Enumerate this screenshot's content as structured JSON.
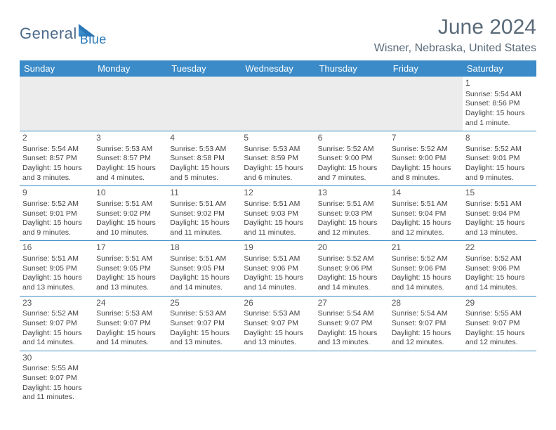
{
  "logo": {
    "part1": "General",
    "part2": "Blue"
  },
  "title": "June 2024",
  "location": "Wisner, Nebraska, United States",
  "colors": {
    "header_bg": "#3a8bc8",
    "header_text": "#ffffff",
    "border": "#3a8bc8",
    "empty_bg": "#ececec",
    "logo_gray": "#4a6a8a",
    "logo_blue": "#2a78b8",
    "title_color": "#5a6a78"
  },
  "day_headers": [
    "Sunday",
    "Monday",
    "Tuesday",
    "Wednesday",
    "Thursday",
    "Friday",
    "Saturday"
  ],
  "weeks": [
    [
      null,
      null,
      null,
      null,
      null,
      null,
      {
        "n": "1",
        "sr": "5:54 AM",
        "ss": "8:56 PM",
        "dl": "15 hours and 1 minute."
      }
    ],
    [
      {
        "n": "2",
        "sr": "5:54 AM",
        "ss": "8:57 PM",
        "dl": "15 hours and 3 minutes."
      },
      {
        "n": "3",
        "sr": "5:53 AM",
        "ss": "8:57 PM",
        "dl": "15 hours and 4 minutes."
      },
      {
        "n": "4",
        "sr": "5:53 AM",
        "ss": "8:58 PM",
        "dl": "15 hours and 5 minutes."
      },
      {
        "n": "5",
        "sr": "5:53 AM",
        "ss": "8:59 PM",
        "dl": "15 hours and 6 minutes."
      },
      {
        "n": "6",
        "sr": "5:52 AM",
        "ss": "9:00 PM",
        "dl": "15 hours and 7 minutes."
      },
      {
        "n": "7",
        "sr": "5:52 AM",
        "ss": "9:00 PM",
        "dl": "15 hours and 8 minutes."
      },
      {
        "n": "8",
        "sr": "5:52 AM",
        "ss": "9:01 PM",
        "dl": "15 hours and 9 minutes."
      }
    ],
    [
      {
        "n": "9",
        "sr": "5:52 AM",
        "ss": "9:01 PM",
        "dl": "15 hours and 9 minutes."
      },
      {
        "n": "10",
        "sr": "5:51 AM",
        "ss": "9:02 PM",
        "dl": "15 hours and 10 minutes."
      },
      {
        "n": "11",
        "sr": "5:51 AM",
        "ss": "9:02 PM",
        "dl": "15 hours and 11 minutes."
      },
      {
        "n": "12",
        "sr": "5:51 AM",
        "ss": "9:03 PM",
        "dl": "15 hours and 11 minutes."
      },
      {
        "n": "13",
        "sr": "5:51 AM",
        "ss": "9:03 PM",
        "dl": "15 hours and 12 minutes."
      },
      {
        "n": "14",
        "sr": "5:51 AM",
        "ss": "9:04 PM",
        "dl": "15 hours and 12 minutes."
      },
      {
        "n": "15",
        "sr": "5:51 AM",
        "ss": "9:04 PM",
        "dl": "15 hours and 13 minutes."
      }
    ],
    [
      {
        "n": "16",
        "sr": "5:51 AM",
        "ss": "9:05 PM",
        "dl": "15 hours and 13 minutes."
      },
      {
        "n": "17",
        "sr": "5:51 AM",
        "ss": "9:05 PM",
        "dl": "15 hours and 13 minutes."
      },
      {
        "n": "18",
        "sr": "5:51 AM",
        "ss": "9:05 PM",
        "dl": "15 hours and 14 minutes."
      },
      {
        "n": "19",
        "sr": "5:51 AM",
        "ss": "9:06 PM",
        "dl": "15 hours and 14 minutes."
      },
      {
        "n": "20",
        "sr": "5:52 AM",
        "ss": "9:06 PM",
        "dl": "15 hours and 14 minutes."
      },
      {
        "n": "21",
        "sr": "5:52 AM",
        "ss": "9:06 PM",
        "dl": "15 hours and 14 minutes."
      },
      {
        "n": "22",
        "sr": "5:52 AM",
        "ss": "9:06 PM",
        "dl": "15 hours and 14 minutes."
      }
    ],
    [
      {
        "n": "23",
        "sr": "5:52 AM",
        "ss": "9:07 PM",
        "dl": "15 hours and 14 minutes."
      },
      {
        "n": "24",
        "sr": "5:53 AM",
        "ss": "9:07 PM",
        "dl": "15 hours and 14 minutes."
      },
      {
        "n": "25",
        "sr": "5:53 AM",
        "ss": "9:07 PM",
        "dl": "15 hours and 13 minutes."
      },
      {
        "n": "26",
        "sr": "5:53 AM",
        "ss": "9:07 PM",
        "dl": "15 hours and 13 minutes."
      },
      {
        "n": "27",
        "sr": "5:54 AM",
        "ss": "9:07 PM",
        "dl": "15 hours and 13 minutes."
      },
      {
        "n": "28",
        "sr": "5:54 AM",
        "ss": "9:07 PM",
        "dl": "15 hours and 12 minutes."
      },
      {
        "n": "29",
        "sr": "5:55 AM",
        "ss": "9:07 PM",
        "dl": "15 hours and 12 minutes."
      }
    ],
    [
      {
        "n": "30",
        "sr": "5:55 AM",
        "ss": "9:07 PM",
        "dl": "15 hours and 11 minutes."
      },
      null,
      null,
      null,
      null,
      null,
      null
    ]
  ],
  "labels": {
    "sunrise": "Sunrise:",
    "sunset": "Sunset:",
    "daylight": "Daylight:"
  }
}
